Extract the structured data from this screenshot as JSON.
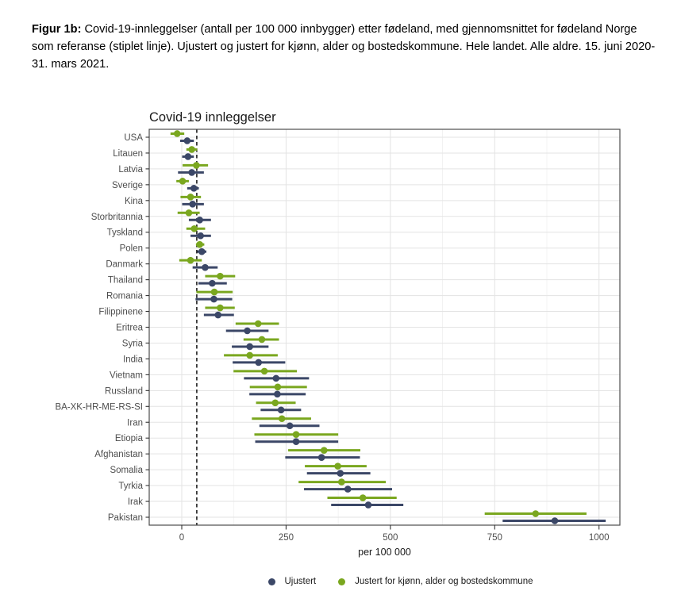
{
  "caption": {
    "label": "Figur 1b:",
    "text": " Covid-19-innleggelser (antall per 100 000 innbygger) etter fødeland, med gjennomsnittet for fødeland Norge som referanse (stiplet linje). Ujustert og justert for kjønn, alder og bostedskommune. Hele landet. Alle aldre. 15. juni 2020-31. mars 2021."
  },
  "chart_data": {
    "type": "scatter",
    "subtype": "dot-interval-forest",
    "title": "Covid-19 innleggelser",
    "xlabel": "per 100 000",
    "xlim": [
      -78,
      1050
    ],
    "x_ticks": [
      0,
      250,
      500,
      750,
      1000
    ],
    "x_minor_ticks": [
      125,
      375,
      625,
      875
    ],
    "reference_line_x": 36,
    "reference_line_style": "dashed",
    "grid": true,
    "legend_position": "bottom",
    "categories": [
      "USA",
      "Litauen",
      "Latvia",
      "Sverige",
      "Kina",
      "Storbritannia",
      "Tyskland",
      "Polen",
      "Danmark",
      "Thailand",
      "Romania",
      "Filippinene",
      "Eritrea",
      "Syria",
      "India",
      "Vietnam",
      "Russland",
      "BA-XK-HR-ME-RS-SI",
      "Iran",
      "Etiopia",
      "Afghanistan",
      "Somalia",
      "Tyrkia",
      "Irak",
      "Pakistan"
    ],
    "series": [
      {
        "name": "Ujustert",
        "color": "#3B4767",
        "est": [
          13,
          15,
          24,
          29,
          26,
          43,
          45,
          48,
          56,
          73,
          77,
          87,
          157,
          163,
          184,
          226,
          229,
          238,
          259,
          274,
          335,
          380,
          398,
          447,
          894
        ],
        "lo": [
          -4,
          1,
          -9,
          13,
          1,
          17,
          21,
          37,
          26,
          40,
          33,
          53,
          106,
          120,
          122,
          149,
          162,
          189,
          186,
          176,
          248,
          300,
          293,
          358,
          769
        ],
        "hi": [
          29,
          29,
          53,
          41,
          53,
          70,
          70,
          59,
          86,
          108,
          121,
          125,
          208,
          208,
          248,
          305,
          297,
          286,
          330,
          375,
          427,
          452,
          504,
          531,
          1016
        ]
      },
      {
        "name": "Justert for kjønn, alder og bostedskommune",
        "color": "#7AA71F",
        "est": [
          -11,
          24,
          35,
          2,
          21,
          17,
          30,
          43,
          21,
          92,
          78,
          92,
          183,
          192,
          163,
          198,
          230,
          224,
          240,
          274,
          341,
          374,
          383,
          434,
          848
        ],
        "lo": [
          -27,
          11,
          2,
          -13,
          -3,
          -10,
          11,
          34,
          -6,
          56,
          35,
          56,
          129,
          148,
          101,
          124,
          163,
          178,
          168,
          174,
          255,
          295,
          280,
          349,
          726
        ],
        "hi": [
          6,
          37,
          63,
          17,
          46,
          43,
          56,
          54,
          48,
          128,
          122,
          127,
          233,
          233,
          230,
          276,
          300,
          273,
          310,
          375,
          428,
          443,
          489,
          515,
          970
        ]
      }
    ],
    "colors": {
      "grid_major": "#e3e3e3",
      "grid_minor": "#f0f0f0",
      "panel_border": "#4d4d4d",
      "axis_text": "#4d4d4d",
      "title_text": "#1a1a1a",
      "reference_line": "#000000"
    }
  }
}
